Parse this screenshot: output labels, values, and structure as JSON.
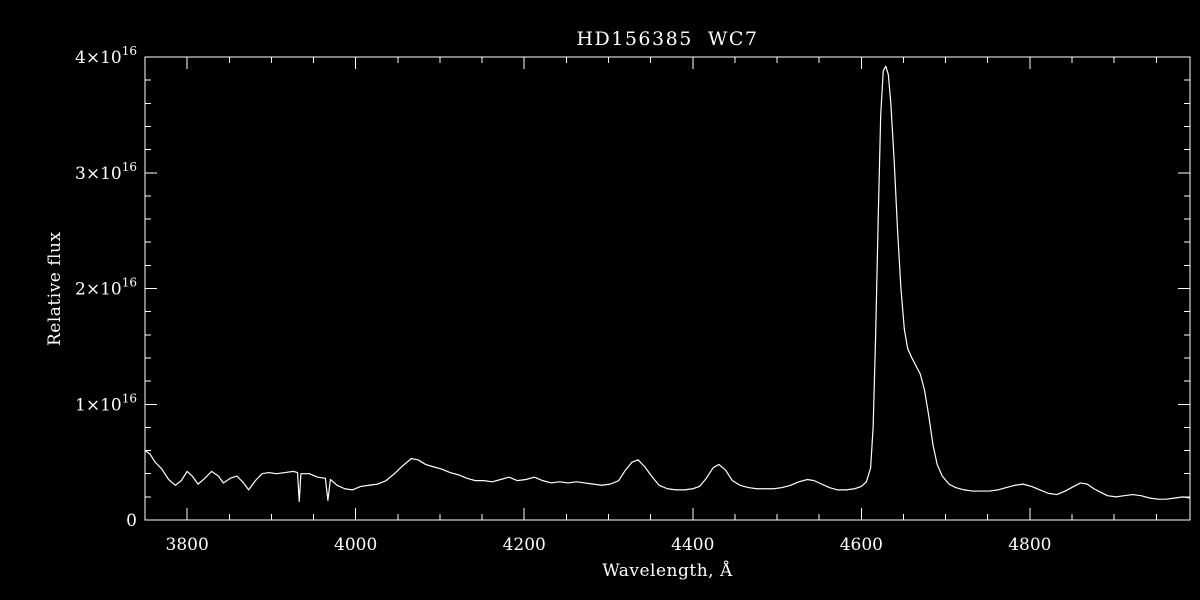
{
  "chart_data": {
    "type": "line",
    "title": "HD156385  WC7",
    "xlabel": "Wavelength, Å",
    "ylabel": "Relative flux",
    "x_range": [
      3750,
      4990
    ],
    "y_range": [
      0,
      4
    ],
    "y_unit_note": "flux values in units of 10^16",
    "x_major_ticks": [
      3800,
      4000,
      4200,
      4400,
      4600,
      4800
    ],
    "x_minor_step": 50,
    "y_major_ticks": [
      {
        "value": 0,
        "mantissa": "0",
        "exponent": ""
      },
      {
        "value": 1,
        "mantissa": "1×10",
        "exponent": "16"
      },
      {
        "value": 2,
        "mantissa": "2×10",
        "exponent": "16"
      },
      {
        "value": 3,
        "mantissa": "3×10",
        "exponent": "16"
      },
      {
        "value": 4,
        "mantissa": "4×10",
        "exponent": "16"
      }
    ],
    "y_minor_step": 0.2,
    "line_color": "#ffffff",
    "axis_color": "#ffffff",
    "background_color": "#000000",
    "legend": "off",
    "grid": "off",
    "series": [
      {
        "name": "HD156385 spectrum",
        "points": [
          [
            3750,
            0.6
          ],
          [
            3756,
            0.57
          ],
          [
            3762,
            0.5
          ],
          [
            3770,
            0.44
          ],
          [
            3778,
            0.35
          ],
          [
            3786,
            0.3
          ],
          [
            3793,
            0.34
          ],
          [
            3800,
            0.42
          ],
          [
            3806,
            0.38
          ],
          [
            3813,
            0.31
          ],
          [
            3821,
            0.36
          ],
          [
            3829,
            0.42
          ],
          [
            3837,
            0.38
          ],
          [
            3843,
            0.32
          ],
          [
            3851,
            0.36
          ],
          [
            3859,
            0.38
          ],
          [
            3867,
            0.32
          ],
          [
            3873,
            0.26
          ],
          [
            3881,
            0.34
          ],
          [
            3889,
            0.4
          ],
          [
            3897,
            0.41
          ],
          [
            3906,
            0.4
          ],
          [
            3916,
            0.41
          ],
          [
            3926,
            0.42
          ],
          [
            3931,
            0.41
          ],
          [
            3933,
            0.16
          ],
          [
            3935,
            0.4
          ],
          [
            3945,
            0.4
          ],
          [
            3955,
            0.37
          ],
          [
            3964,
            0.36
          ],
          [
            3967,
            0.17
          ],
          [
            3970,
            0.35
          ],
          [
            3978,
            0.3
          ],
          [
            3987,
            0.27
          ],
          [
            3996,
            0.26
          ],
          [
            4006,
            0.29
          ],
          [
            4016,
            0.3
          ],
          [
            4026,
            0.31
          ],
          [
            4036,
            0.34
          ],
          [
            4046,
            0.4
          ],
          [
            4056,
            0.47
          ],
          [
            4066,
            0.53
          ],
          [
            4074,
            0.52
          ],
          [
            4083,
            0.48
          ],
          [
            4092,
            0.46
          ],
          [
            4102,
            0.44
          ],
          [
            4112,
            0.41
          ],
          [
            4122,
            0.39
          ],
          [
            4132,
            0.36
          ],
          [
            4142,
            0.34
          ],
          [
            4152,
            0.34
          ],
          [
            4162,
            0.33
          ],
          [
            4172,
            0.35
          ],
          [
            4182,
            0.37
          ],
          [
            4192,
            0.34
          ],
          [
            4202,
            0.35
          ],
          [
            4212,
            0.37
          ],
          [
            4222,
            0.34
          ],
          [
            4232,
            0.32
          ],
          [
            4242,
            0.33
          ],
          [
            4252,
            0.32
          ],
          [
            4262,
            0.33
          ],
          [
            4272,
            0.32
          ],
          [
            4282,
            0.31
          ],
          [
            4292,
            0.3
          ],
          [
            4302,
            0.31
          ],
          [
            4312,
            0.34
          ],
          [
            4320,
            0.43
          ],
          [
            4328,
            0.5
          ],
          [
            4335,
            0.52
          ],
          [
            4343,
            0.46
          ],
          [
            4351,
            0.38
          ],
          [
            4360,
            0.3
          ],
          [
            4370,
            0.27
          ],
          [
            4380,
            0.26
          ],
          [
            4390,
            0.26
          ],
          [
            4400,
            0.27
          ],
          [
            4408,
            0.29
          ],
          [
            4416,
            0.36
          ],
          [
            4424,
            0.45
          ],
          [
            4431,
            0.48
          ],
          [
            4439,
            0.43
          ],
          [
            4447,
            0.34
          ],
          [
            4456,
            0.3
          ],
          [
            4466,
            0.28
          ],
          [
            4476,
            0.27
          ],
          [
            4486,
            0.27
          ],
          [
            4496,
            0.27
          ],
          [
            4506,
            0.28
          ],
          [
            4516,
            0.3
          ],
          [
            4526,
            0.33
          ],
          [
            4536,
            0.35
          ],
          [
            4544,
            0.34
          ],
          [
            4553,
            0.31
          ],
          [
            4562,
            0.28
          ],
          [
            4572,
            0.26
          ],
          [
            4582,
            0.26
          ],
          [
            4592,
            0.27
          ],
          [
            4600,
            0.29
          ],
          [
            4606,
            0.33
          ],
          [
            4611,
            0.45
          ],
          [
            4614,
            0.8
          ],
          [
            4617,
            1.6
          ],
          [
            4620,
            2.6
          ],
          [
            4623,
            3.5
          ],
          [
            4626,
            3.88
          ],
          [
            4629,
            3.92
          ],
          [
            4632,
            3.85
          ],
          [
            4635,
            3.6
          ],
          [
            4639,
            3.1
          ],
          [
            4643,
            2.5
          ],
          [
            4647,
            2.0
          ],
          [
            4651,
            1.65
          ],
          [
            4655,
            1.48
          ],
          [
            4660,
            1.4
          ],
          [
            4665,
            1.33
          ],
          [
            4670,
            1.26
          ],
          [
            4675,
            1.12
          ],
          [
            4680,
            0.9
          ],
          [
            4685,
            0.65
          ],
          [
            4690,
            0.48
          ],
          [
            4696,
            0.38
          ],
          [
            4704,
            0.31
          ],
          [
            4712,
            0.28
          ],
          [
            4722,
            0.26
          ],
          [
            4732,
            0.25
          ],
          [
            4742,
            0.25
          ],
          [
            4752,
            0.25
          ],
          [
            4762,
            0.26
          ],
          [
            4772,
            0.28
          ],
          [
            4782,
            0.3
          ],
          [
            4792,
            0.31
          ],
          [
            4802,
            0.29
          ],
          [
            4812,
            0.26
          ],
          [
            4822,
            0.23
          ],
          [
            4832,
            0.22
          ],
          [
            4842,
            0.25
          ],
          [
            4852,
            0.29
          ],
          [
            4860,
            0.32
          ],
          [
            4868,
            0.31
          ],
          [
            4876,
            0.27
          ],
          [
            4884,
            0.24
          ],
          [
            4892,
            0.21
          ],
          [
            4902,
            0.2
          ],
          [
            4912,
            0.21
          ],
          [
            4922,
            0.22
          ],
          [
            4932,
            0.21
          ],
          [
            4942,
            0.19
          ],
          [
            4952,
            0.18
          ],
          [
            4962,
            0.18
          ],
          [
            4972,
            0.19
          ],
          [
            4982,
            0.2
          ],
          [
            4990,
            0.19
          ]
        ]
      }
    ]
  }
}
